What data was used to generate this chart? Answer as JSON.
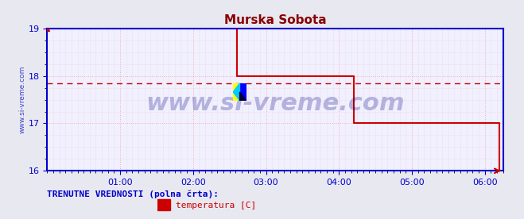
{
  "title": "Murska Sobota",
  "title_color": "#8b0000",
  "bg_color": "#e8e8f0",
  "plot_bg_color": "#f0f0ff",
  "grid_color": "#ff9999",
  "axis_color": "#0000cc",
  "line_color": "#cc0000",
  "avg_line_color": "#cc0000",
  "avg_line_value": 17.85,
  "ylabel_text": "www.si-vreme.com",
  "ylabel_color": "#4444cc",
  "watermark": "www.si-vreme.com",
  "watermark_color": "#000080",
  "watermark_alpha": 0.25,
  "ylim": [
    16,
    19
  ],
  "yticks": [
    16,
    17,
    18,
    19
  ],
  "xlabel_color": "#0000cc",
  "xtick_labels": [
    "01:00",
    "02:00",
    "03:00",
    "04:00",
    "05:00",
    "06:00"
  ],
  "legend_label": "temperatura [C]",
  "legend_color": "#cc0000",
  "footer_text": "TRENUTNE VREDNOSTI (polna črta):",
  "footer_color": "#0000cc",
  "time_x": [
    0,
    12,
    24,
    36,
    48,
    60,
    72,
    84,
    96,
    108,
    120,
    132,
    144,
    156,
    168,
    180,
    192,
    204,
    216,
    228,
    240,
    252,
    264,
    276,
    288,
    300,
    312,
    324,
    336,
    348,
    360,
    372
  ],
  "temp_y": [
    19.0,
    19.0,
    19.0,
    19.0,
    19.0,
    19.0,
    19.0,
    19.0,
    19.0,
    19.0,
    19.0,
    19.0,
    19.0,
    18.0,
    18.0,
    18.0,
    18.0,
    18.0,
    18.0,
    18.0,
    18.0,
    17.0,
    17.0,
    17.0,
    17.0,
    17.0,
    17.0,
    17.0,
    17.0,
    17.0,
    17.0,
    16.0
  ],
  "xmin": 0,
  "xmax": 375,
  "arrow_color": "#cc0000"
}
